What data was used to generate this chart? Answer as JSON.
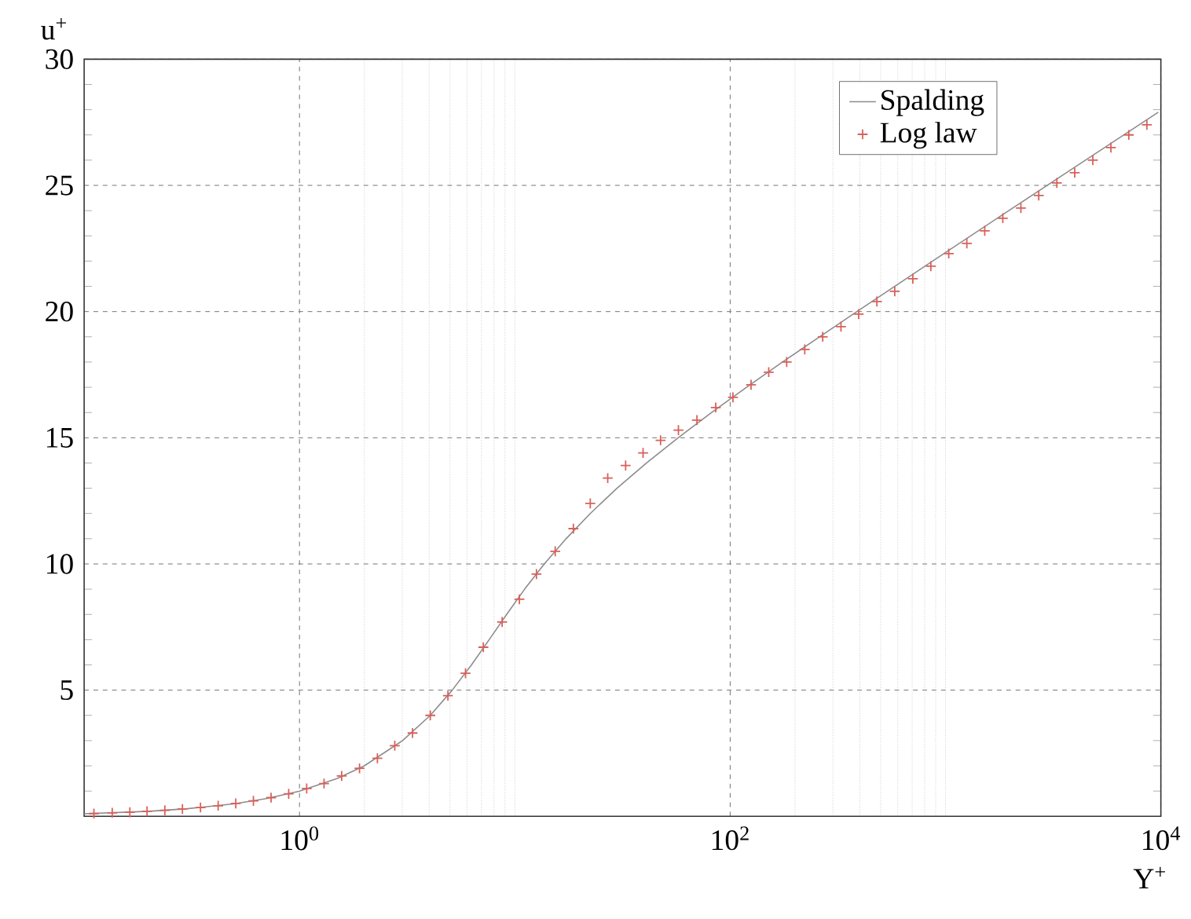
{
  "chart_data": {
    "type": "line",
    "xlabel": "Y$^{+}$",
    "ylabel": "u$^{+}$",
    "log": "x",
    "xlim": [
      0.1,
      10000
    ],
    "ylim": [
      0,
      30
    ],
    "xticks": [
      {
        "value": 1,
        "label": "10$^{0}$"
      },
      {
        "value": 2,
        "label": null
      },
      {
        "value": 3,
        "label": null
      },
      {
        "value": 4,
        "label": null
      },
      {
        "value": 5,
        "label": null
      },
      {
        "value": 6,
        "label": null
      },
      {
        "value": 7,
        "label": null
      },
      {
        "value": 8,
        "label": null
      },
      {
        "value": 9,
        "label": null
      },
      {
        "value": 10,
        "label": null
      },
      {
        "value": 100,
        "label": "10$^{2}$"
      },
      {
        "value": 200,
        "label": null
      },
      {
        "value": 300,
        "label": null
      },
      {
        "value": 400,
        "label": null
      },
      {
        "value": 500,
        "label": null
      },
      {
        "value": 600,
        "label": null
      },
      {
        "value": 700,
        "label": null
      },
      {
        "value": 800,
        "label": null
      },
      {
        "value": 900,
        "label": null
      },
      {
        "value": 1000,
        "label": null
      },
      {
        "value": 10000,
        "label": "10$^{4}$"
      }
    ],
    "yticks": [
      {
        "value": 1,
        "label": null
      },
      {
        "value": 2,
        "label": null
      },
      {
        "value": 3,
        "label": null
      },
      {
        "value": 4,
        "label": null
      },
      5,
      {
        "value": 6,
        "label": null
      },
      {
        "value": 7,
        "label": null
      },
      {
        "value": 8,
        "label": null
      },
      {
        "value": 9,
        "label": null
      },
      10,
      {
        "value": 11,
        "label": null
      },
      {
        "value": 12,
        "label": null
      },
      {
        "value": 13,
        "label": null
      },
      {
        "value": 14,
        "label": null
      },
      15,
      {
        "value": 16,
        "label": null
      },
      {
        "value": 17,
        "label": null
      },
      {
        "value": 18,
        "label": null
      },
      {
        "value": 19,
        "label": null
      },
      20,
      {
        "value": 21,
        "label": null
      },
      {
        "value": 22,
        "label": null
      },
      {
        "value": 23,
        "label": null
      },
      {
        "value": 24,
        "label": null
      },
      25,
      {
        "value": 26,
        "label": null
      },
      {
        "value": 27,
        "label": null
      },
      {
        "value": 28,
        "label": null
      },
      {
        "value": 29,
        "label": null
      },
      30
    ],
    "grid": true,
    "legend": "top right",
    "series": [
      {
        "name": "Spalding",
        "color": "#8c8c8c",
        "marker": "none",
        "line_style": "solid",
        "x": [
          0.1,
          0.2,
          0.3,
          0.5,
          0.7,
          1.0,
          1.5,
          2.0,
          3.01,
          4.05,
          5.12,
          6.29,
          7.6,
          9.16,
          11.1,
          13.7,
          17.3,
          22.4,
          29.8,
          40.9,
          57.3,
          82.0,
          119,
          175,
          260,
          388,
          871,
          1968,
          4466,
          9727
        ],
        "values": [
          0.1,
          0.2,
          0.3,
          0.5,
          0.7,
          1.0,
          1.5,
          2.0,
          3,
          4,
          5,
          6,
          7,
          8,
          9,
          10,
          11,
          12,
          13,
          14,
          15,
          16,
          17,
          18,
          19,
          20,
          22,
          24,
          26,
          27.9
        ]
      },
      {
        "name": "Log law",
        "type": "scatter",
        "color": "#d8605a",
        "marker": "cross",
        "x": [
          0.111,
          0.135,
          0.163,
          0.196,
          0.237,
          0.286,
          0.347,
          0.419,
          0.506,
          0.611,
          0.738,
          0.891,
          1.08,
          1.3,
          1.57,
          1.9,
          2.3,
          2.77,
          3.35,
          4.05,
          4.89,
          5.9,
          7.14,
          8.73,
          10.5,
          12.6,
          15.4,
          18.7,
          22.4,
          27.0,
          32.7,
          39.4,
          47.5,
          57.5,
          70.1,
          85.7,
          103,
          125,
          151,
          183,
          222,
          269,
          327,
          395,
          480,
          581,
          705,
          855,
          1035,
          1256,
          1521,
          1845,
          2239,
          2710,
          3289,
          3981,
          4831,
          5861,
          7096,
          8610
        ],
        "values": [
          0.11,
          0.14,
          0.16,
          0.2,
          0.24,
          0.29,
          0.35,
          0.42,
          0.51,
          0.61,
          0.74,
          0.89,
          1.1,
          1.3,
          1.6,
          1.9,
          2.3,
          2.8,
          3.3,
          4.0,
          4.78,
          5.67,
          6.7,
          7.7,
          8.6,
          9.6,
          10.5,
          11.4,
          12.4,
          13.4,
          13.9,
          14.4,
          14.9,
          15.3,
          15.7,
          16.2,
          16.6,
          17.1,
          17.6,
          18.0,
          18.5,
          19.0,
          19.4,
          19.9,
          20.4,
          20.8,
          21.3,
          21.8,
          22.3,
          22.7,
          23.2,
          23.7,
          24.1,
          24.6,
          25.1,
          25.5,
          26.0,
          26.5,
          27.0,
          27.4
        ]
      }
    ]
  }
}
